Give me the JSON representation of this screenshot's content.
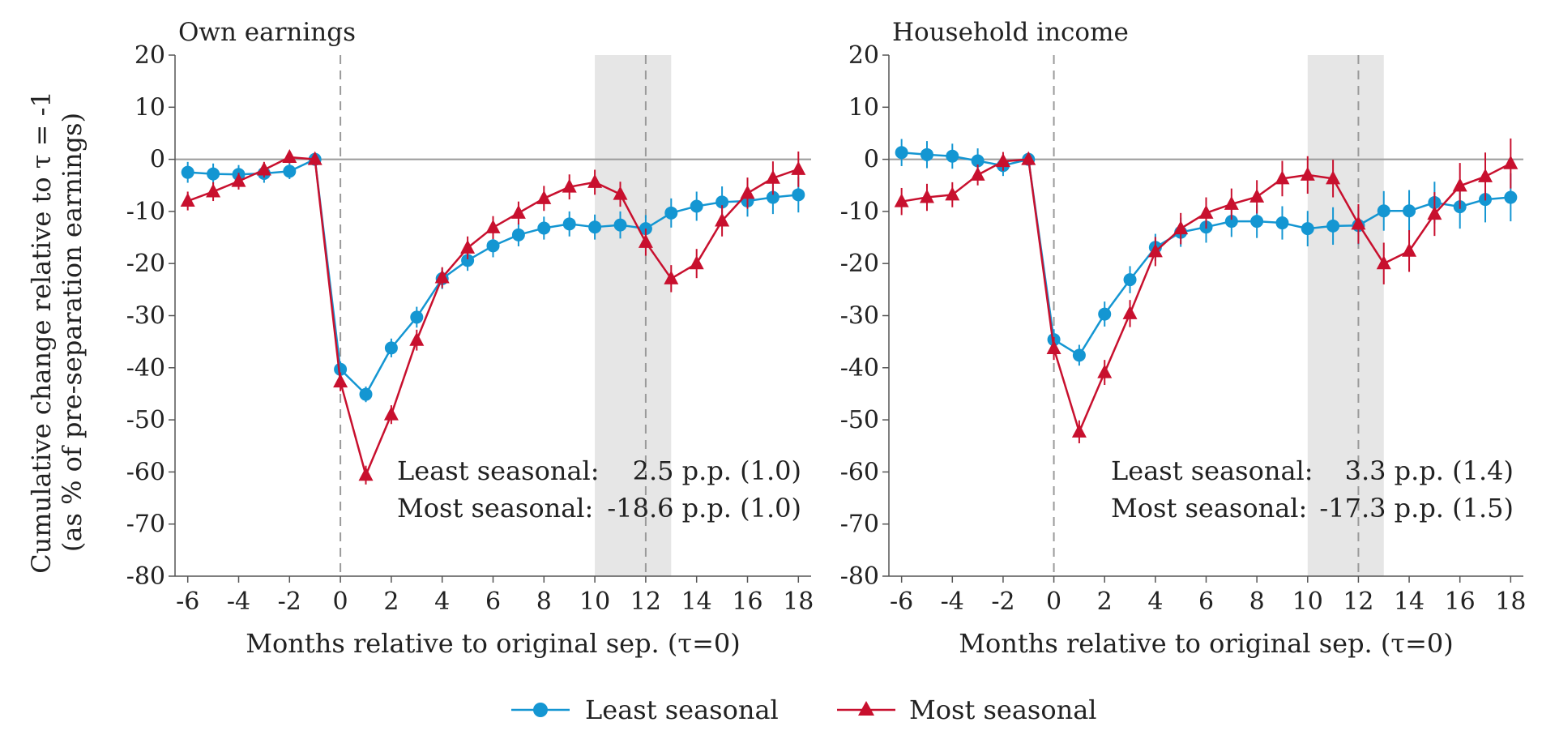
{
  "figure": {
    "ylabel_line1": "Cumulative change relative to τ = -1",
    "ylabel_line2": "(as % of pre-separation earnings)"
  },
  "legend": [
    {
      "label": "Least seasonal",
      "color": "#1496d2",
      "marker": "circle"
    },
    {
      "label": "Most seasonal",
      "color": "#c8102e",
      "marker": "triangle"
    }
  ],
  "chart_data": [
    {
      "type": "line",
      "title": "Own earnings",
      "xlabel": "Months relative to original sep. (τ=0)",
      "ylabel": "Cumulative change relative to τ = -1 (as % of pre-separation earnings)",
      "xlim": [
        -6.5,
        18.5
      ],
      "ylim": [
        -80,
        20
      ],
      "xticks": [
        -6,
        -4,
        -2,
        0,
        2,
        4,
        6,
        8,
        10,
        12,
        14,
        16,
        18
      ],
      "yticks": [
        20,
        10,
        0,
        -10,
        -20,
        -30,
        -40,
        -50,
        -60,
        -70,
        -80
      ],
      "x": [
        -6,
        -5,
        -4,
        -3,
        -2,
        -1,
        0,
        1,
        2,
        3,
        4,
        5,
        6,
        7,
        8,
        9,
        10,
        11,
        12,
        13,
        14,
        15,
        16,
        17,
        18
      ],
      "vlines": [
        0,
        12
      ],
      "shaded_region": [
        10,
        13
      ],
      "hline": 0,
      "series": [
        {
          "name": "Least seasonal",
          "values": [
            -2.5,
            -2.8,
            -2.9,
            -2.7,
            -2.3,
            0,
            -40.3,
            -45.1,
            -36.2,
            -30.3,
            -22.9,
            -19.4,
            -16.6,
            -14.5,
            -13.2,
            -12.4,
            -13.0,
            -12.6,
            -13.3,
            -10.3,
            -9.0,
            -8.2,
            -8.0,
            -7.3,
            -6.8
          ],
          "ci": [
            2.0,
            2.0,
            1.8,
            1.8,
            1.5,
            0,
            1.5,
            1.5,
            1.8,
            2.0,
            2.0,
            2.0,
            2.2,
            2.2,
            2.2,
            2.4,
            2.4,
            2.6,
            2.6,
            2.8,
            2.8,
            3.0,
            3.0,
            3.2,
            3.4
          ]
        },
        {
          "name": "Most seasonal",
          "values": [
            -8.0,
            -6.2,
            -4.2,
            -2.0,
            0.4,
            0,
            -42.7,
            -60.6,
            -49.0,
            -34.7,
            -22.7,
            -17.0,
            -13.1,
            -10.3,
            -7.5,
            -5.3,
            -4.4,
            -6.7,
            -15.9,
            -22.9,
            -20.0,
            -11.8,
            -6.5,
            -3.6,
            -1.9
          ],
          "ci": [
            1.8,
            1.8,
            1.6,
            1.5,
            1.2,
            0,
            1.8,
            1.8,
            1.8,
            2.0,
            2.0,
            2.2,
            2.2,
            2.2,
            2.4,
            2.4,
            2.4,
            2.4,
            2.6,
            2.6,
            2.8,
            3.0,
            3.0,
            3.2,
            3.4
          ]
        }
      ],
      "annotations": [
        {
          "label": "Least seasonal:",
          "value": "2.5 p.p. (1.0)",
          "color": "#1496d2"
        },
        {
          "label": "Most seasonal:",
          "value": "-18.6 p.p. (1.0)",
          "color": "#c8102e"
        }
      ]
    },
    {
      "type": "line",
      "title": "Household income",
      "xlabel": "Months relative to original sep. (τ=0)",
      "ylabel": "",
      "xlim": [
        -6.5,
        18.5
      ],
      "ylim": [
        -80,
        20
      ],
      "xticks": [
        -6,
        -4,
        -2,
        0,
        2,
        4,
        6,
        8,
        10,
        12,
        14,
        16,
        18
      ],
      "yticks": [
        20,
        10,
        0,
        -10,
        -20,
        -30,
        -40,
        -50,
        -60,
        -70,
        -80
      ],
      "x": [
        -6,
        -5,
        -4,
        -3,
        -2,
        -1,
        0,
        1,
        2,
        3,
        4,
        5,
        6,
        7,
        8,
        9,
        10,
        11,
        12,
        13,
        14,
        15,
        16,
        17,
        18
      ],
      "vlines": [
        0,
        12
      ],
      "shaded_region": [
        10,
        13
      ],
      "hline": 0,
      "series": [
        {
          "name": "Least seasonal",
          "values": [
            1.3,
            0.9,
            0.6,
            -0.3,
            -1.2,
            0,
            -34.6,
            -37.6,
            -29.7,
            -23.1,
            -16.9,
            -14.0,
            -13.0,
            -11.9,
            -11.9,
            -12.2,
            -13.3,
            -12.8,
            -12.7,
            -9.9,
            -9.9,
            -8.3,
            -9.1,
            -7.7,
            -7.3
          ],
          "ci": [
            2.6,
            2.6,
            2.4,
            2.4,
            2.0,
            0,
            2.0,
            2.0,
            2.4,
            2.6,
            2.6,
            2.8,
            3.0,
            3.0,
            3.2,
            3.2,
            3.4,
            3.6,
            3.6,
            3.8,
            4.0,
            4.0,
            4.2,
            4.4,
            4.6
          ]
        },
        {
          "name": "Most seasonal",
          "values": [
            -8.1,
            -7.3,
            -6.8,
            -3.0,
            -0.4,
            0,
            -36.3,
            -52.3,
            -40.9,
            -29.6,
            -17.7,
            -13.3,
            -10.3,
            -8.6,
            -7.2,
            -3.7,
            -3.0,
            -3.7,
            -12.4,
            -20.0,
            -17.6,
            -10.5,
            -5.1,
            -3.3,
            -0.8
          ],
          "ci": [
            2.6,
            2.6,
            2.4,
            2.0,
            1.8,
            0,
            2.2,
            2.2,
            2.4,
            2.6,
            2.8,
            3.0,
            3.0,
            3.0,
            3.2,
            3.4,
            3.6,
            3.6,
            3.8,
            4.0,
            4.0,
            4.2,
            4.4,
            4.6,
            4.8
          ]
        }
      ],
      "annotations": [
        {
          "label": "Least seasonal:",
          "value": "3.3 p.p. (1.4)",
          "color": "#1496d2"
        },
        {
          "label": "Most seasonal:",
          "value": "-17.3 p.p. (1.5)",
          "color": "#c8102e"
        }
      ]
    }
  ]
}
